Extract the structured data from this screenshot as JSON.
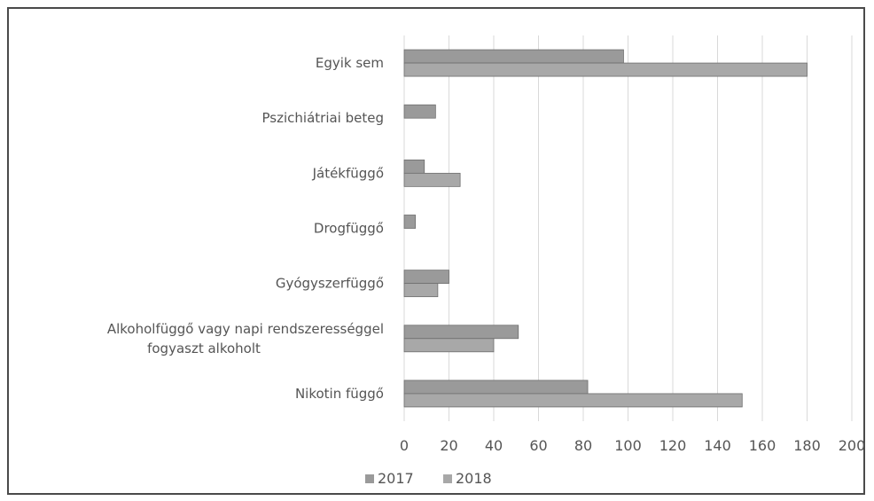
{
  "chart_data": {
    "type": "bar",
    "orientation": "horizontal",
    "categories": [
      [
        "Egyik sem"
      ],
      [
        "Pszichiátriai beteg"
      ],
      [
        "Játékfüggő"
      ],
      [
        "Drogfüggő"
      ],
      [
        "Gyógyszerfüggő"
      ],
      [
        "Alkoholfüggő vagy napi rendszerességgel",
        "fogyaszt alkoholt"
      ],
      [
        "Nikotin függő"
      ]
    ],
    "series": [
      {
        "name": "2017",
        "values": [
          98,
          14,
          9,
          5,
          20,
          51,
          82
        ]
      },
      {
        "name": "2018",
        "values": [
          180,
          0,
          25,
          0,
          15,
          40,
          151
        ]
      }
    ],
    "xlim": [
      0,
      200
    ],
    "xticks": [
      "0",
      "20",
      "40",
      "60",
      "80",
      "100",
      "120",
      "140",
      "160",
      "180",
      "200"
    ],
    "grid": "vertical",
    "legend": "bottom",
    "colors": {
      "series_2017": "#9a9a9a",
      "series_2018": "#a8a8a8",
      "edge": "#6e6e6e",
      "grid": "#d9d9d9"
    }
  }
}
